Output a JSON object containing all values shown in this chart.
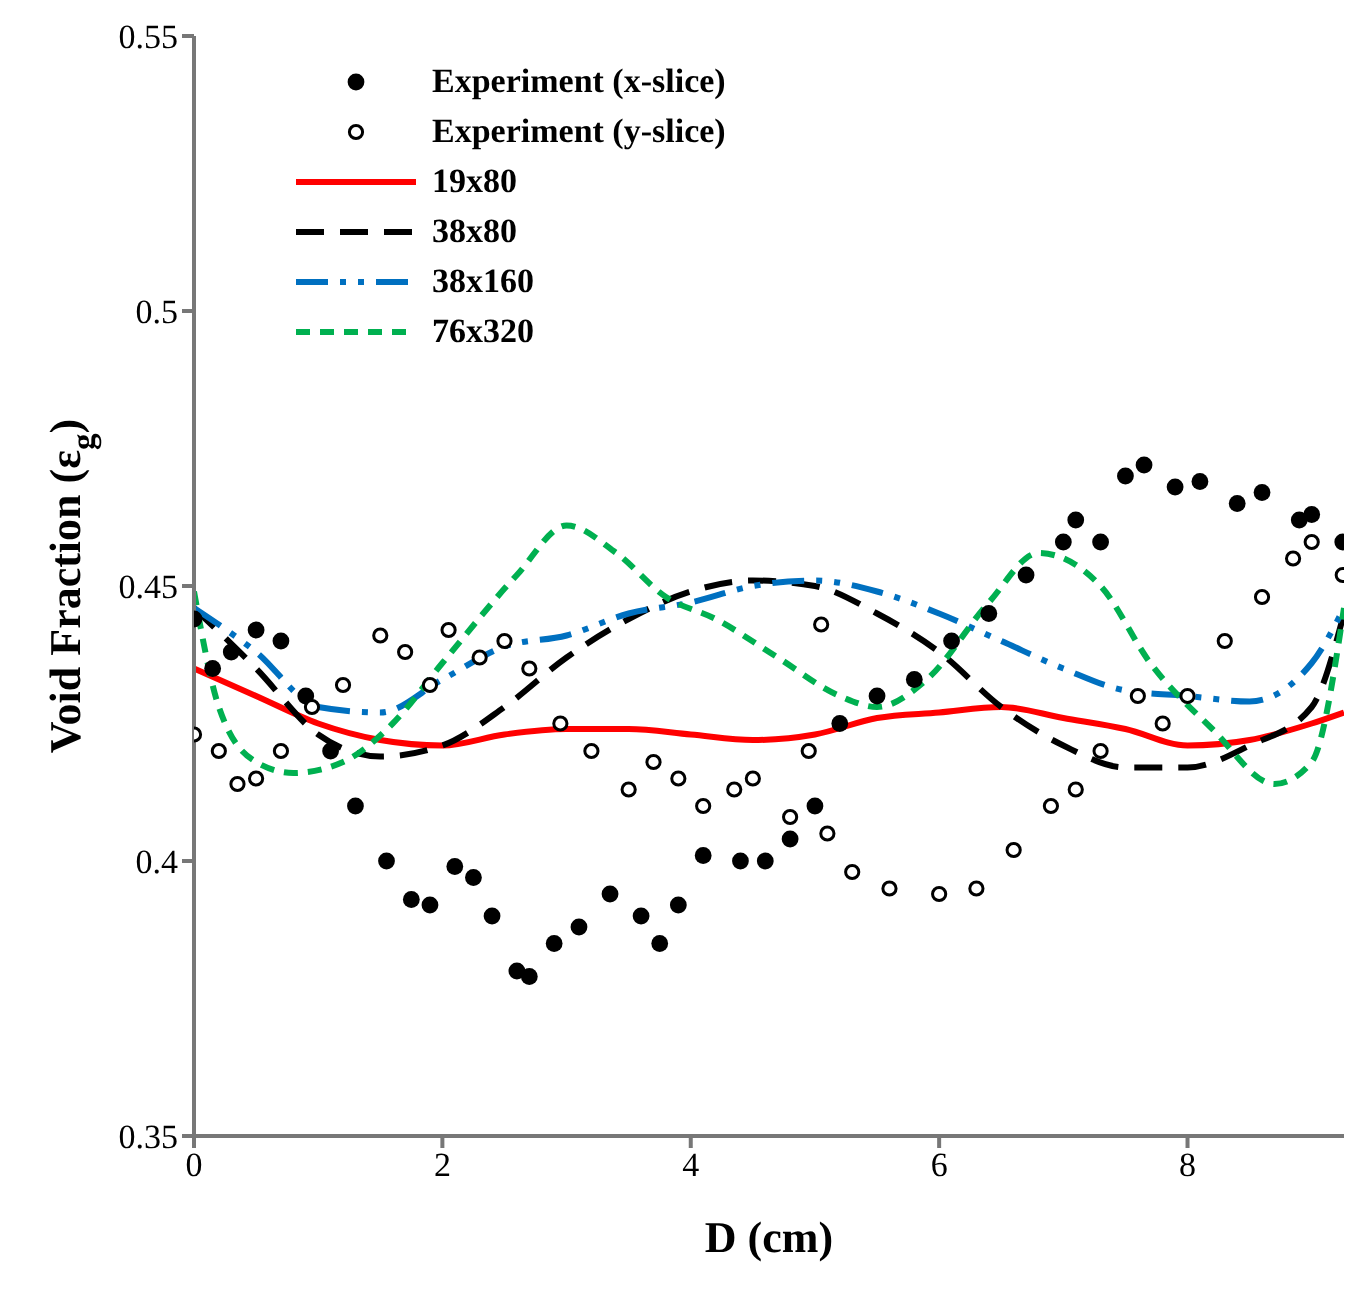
{
  "chart_data": {
    "type": "line",
    "xlabel": "D (cm)",
    "ylabel": "Void Fraction (ε$_{g}$)",
    "xlim": [
      0,
      9.26
    ],
    "xticks": [
      0,
      2,
      4,
      6,
      8
    ],
    "ylim": [
      0.35,
      0.55
    ],
    "yticks": [
      0.35,
      0.4,
      0.45,
      0.5,
      0.55
    ],
    "grid": false,
    "legend": "top left",
    "series": [
      {
        "name": "Experiment (x-slice)",
        "type": "scatter",
        "marker": "circle",
        "color": "#000000",
        "x": [
          0,
          0.15,
          0.3,
          0.5,
          0.7,
          0.9,
          1.1,
          1.3,
          1.55,
          1.75,
          1.9,
          2.1,
          2.25,
          2.4,
          2.6,
          2.7,
          2.9,
          3.1,
          3.35,
          3.6,
          3.75,
          3.9,
          4.1,
          4.4,
          4.6,
          4.8,
          5.0,
          5.2,
          5.5,
          5.8,
          6.1,
          6.4,
          6.7,
          7.0,
          7.1,
          7.3,
          7.5,
          7.65,
          7.9,
          8.1,
          8.4,
          8.6,
          8.9,
          9.0,
          9.25
        ],
        "values": [
          0.444,
          0.435,
          0.438,
          0.442,
          0.44,
          0.43,
          0.42,
          0.41,
          0.4,
          0.393,
          0.392,
          0.399,
          0.397,
          0.39,
          0.38,
          0.379,
          0.385,
          0.388,
          0.394,
          0.39,
          0.385,
          0.392,
          0.401,
          0.4,
          0.4,
          0.404,
          0.41,
          0.425,
          0.43,
          0.433,
          0.44,
          0.445,
          0.452,
          0.458,
          0.462,
          0.458,
          0.47,
          0.472,
          0.468,
          0.469,
          0.465,
          0.467,
          0.462,
          0.463,
          0.458
        ]
      },
      {
        "name": "Experiment (y-slice)",
        "type": "scatter",
        "marker": "circle",
        "color": "#000000",
        "x": [
          0,
          0.2,
          0.35,
          0.5,
          0.7,
          0.95,
          1.2,
          1.5,
          1.7,
          1.9,
          2.05,
          2.3,
          2.5,
          2.7,
          2.95,
          3.2,
          3.5,
          3.7,
          3.9,
          4.1,
          4.35,
          4.5,
          4.8,
          4.95,
          5.05,
          5.1,
          5.3,
          5.6,
          6.0,
          6.3,
          6.6,
          6.9,
          7.1,
          7.3,
          7.6,
          7.8,
          8.0,
          8.3,
          8.6,
          8.85,
          9.0,
          9.25
        ],
        "values": [
          0.423,
          0.42,
          0.414,
          0.415,
          0.42,
          0.428,
          0.432,
          0.441,
          0.438,
          0.432,
          0.442,
          0.437,
          0.44,
          0.435,
          0.425,
          0.42,
          0.413,
          0.418,
          0.415,
          0.41,
          0.413,
          0.415,
          0.408,
          0.42,
          0.443,
          0.405,
          0.398,
          0.395,
          0.394,
          0.395,
          0.402,
          0.41,
          0.413,
          0.42,
          0.43,
          0.425,
          0.43,
          0.44,
          0.448,
          0.455,
          0.458,
          0.452
        ]
      },
      {
        "name": "19x80",
        "color": "#ff0000",
        "line_style": "solid",
        "x": [
          0,
          0.5,
          1,
          1.5,
          2,
          2.5,
          3,
          3.5,
          4,
          4.5,
          5,
          5.5,
          6,
          6.5,
          7,
          7.5,
          8,
          8.5,
          9,
          9.26
        ],
        "values": [
          0.435,
          0.43,
          0.425,
          0.422,
          0.421,
          0.423,
          0.424,
          0.424,
          0.423,
          0.422,
          0.423,
          0.426,
          0.427,
          0.428,
          0.426,
          0.424,
          0.421,
          0.422,
          0.425,
          0.427
        ]
      },
      {
        "name": "38x80",
        "color": "#000000",
        "line_style": "dashed",
        "x": [
          0,
          0.5,
          1,
          1.5,
          2,
          2.5,
          3,
          3.5,
          4,
          4.5,
          5,
          5.5,
          6,
          6.5,
          7,
          7.5,
          8,
          8.5,
          9,
          9.26
        ],
        "values": [
          0.446,
          0.435,
          0.423,
          0.419,
          0.421,
          0.428,
          0.437,
          0.444,
          0.449,
          0.451,
          0.45,
          0.445,
          0.438,
          0.428,
          0.421,
          0.417,
          0.417,
          0.421,
          0.428,
          0.445
        ]
      },
      {
        "name": "38x160",
        "color": "#0070c0",
        "line_style": "dashed",
        "x": [
          0,
          0.5,
          1,
          1.5,
          2,
          2.5,
          3,
          3.5,
          4,
          4.5,
          5,
          5.5,
          6,
          6.5,
          7,
          7.5,
          8,
          8.5,
          9,
          9.26
        ],
        "values": [
          0.446,
          0.438,
          0.428,
          0.427,
          0.433,
          0.439,
          0.441,
          0.445,
          0.447,
          0.45,
          0.451,
          0.449,
          0.445,
          0.44,
          0.435,
          0.431,
          0.43,
          0.429,
          0.436,
          0.446
        ]
      },
      {
        "name": "76x320",
        "color": "#00b050",
        "line_style": "dashed",
        "x": [
          0,
          0.2,
          0.5,
          0.8,
          1.2,
          1.6,
          2,
          2.6,
          3,
          3.4,
          3.8,
          4.2,
          4.7,
          5.2,
          5.5,
          5.9,
          6.4,
          6.8,
          7.3,
          7.7,
          8.2,
          8.7,
          9,
          9.26
        ],
        "values": [
          0.449,
          0.428,
          0.418,
          0.416,
          0.418,
          0.425,
          0.436,
          0.452,
          0.461,
          0.456,
          0.448,
          0.444,
          0.437,
          0.43,
          0.428,
          0.433,
          0.447,
          0.456,
          0.45,
          0.436,
          0.424,
          0.414,
          0.418,
          0.446
        ]
      }
    ]
  }
}
